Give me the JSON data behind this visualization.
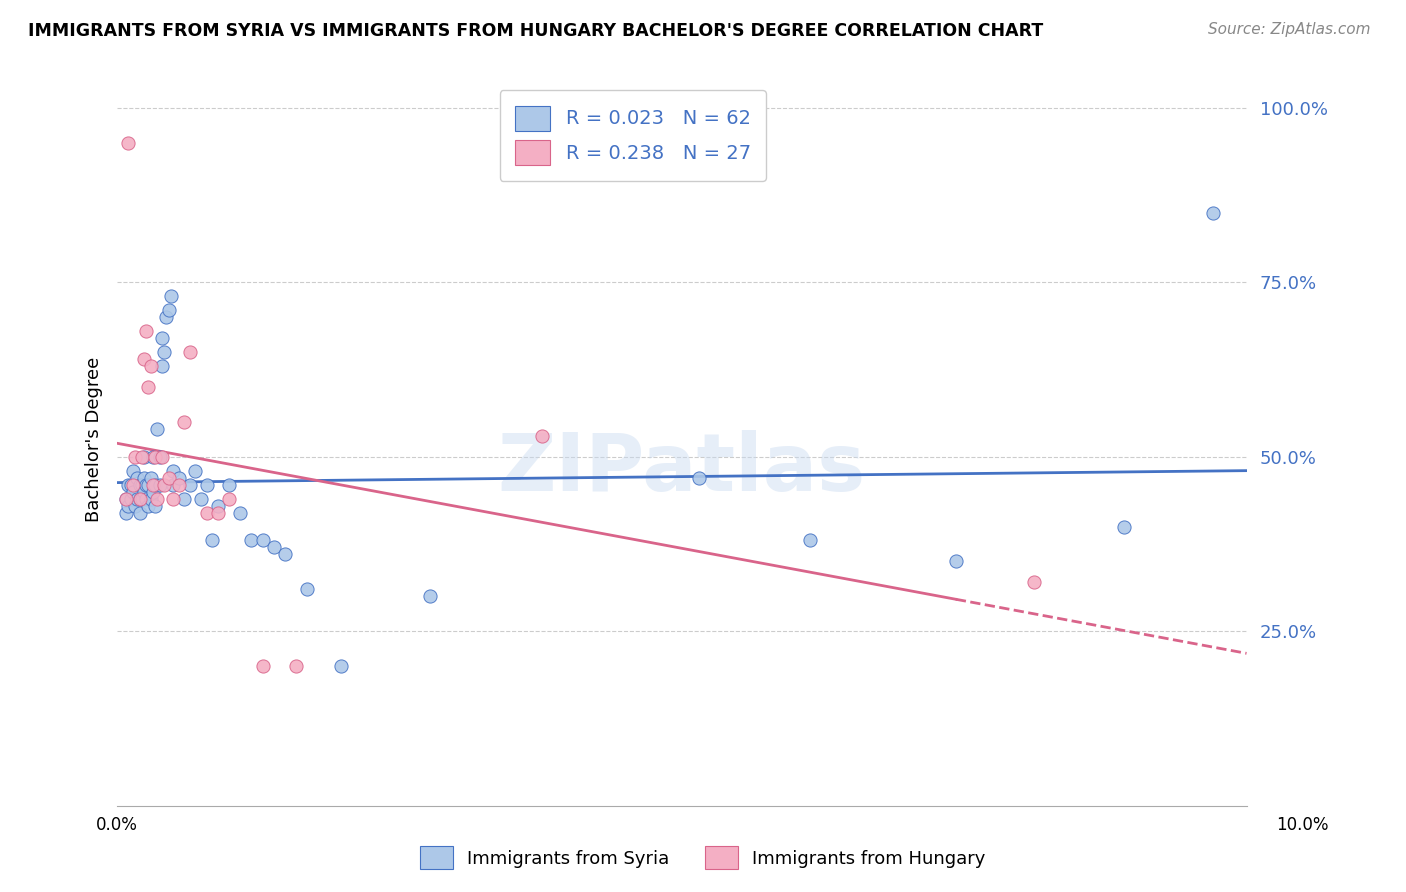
{
  "title": "IMMIGRANTS FROM SYRIA VS IMMIGRANTS FROM HUNGARY BACHELOR'S DEGREE CORRELATION CHART",
  "source": "Source: ZipAtlas.com",
  "ylabel": "Bachelor's Degree",
  "syria_R": 0.023,
  "syria_N": 62,
  "hungary_R": 0.238,
  "hungary_N": 27,
  "syria_color": "#adc8e8",
  "hungary_color": "#f4afc4",
  "syria_line_color": "#4472c4",
  "hungary_line_color": "#d9648a",
  "watermark": "ZIPatlas",
  "syria_points_x": [
    0.0008,
    0.0008,
    0.001,
    0.001,
    0.0012,
    0.0012,
    0.0014,
    0.0014,
    0.0016,
    0.0018,
    0.0018,
    0.002,
    0.002,
    0.002,
    0.0022,
    0.0022,
    0.0024,
    0.0024,
    0.0024,
    0.0026,
    0.0026,
    0.0028,
    0.0028,
    0.003,
    0.003,
    0.0032,
    0.0032,
    0.0034,
    0.0034,
    0.0036,
    0.0038,
    0.0038,
    0.004,
    0.004,
    0.0042,
    0.0044,
    0.0046,
    0.0048,
    0.005,
    0.005,
    0.0055,
    0.006,
    0.0065,
    0.007,
    0.0075,
    0.008,
    0.0085,
    0.009,
    0.01,
    0.011,
    0.012,
    0.013,
    0.014,
    0.015,
    0.017,
    0.02,
    0.028,
    0.052,
    0.062,
    0.075,
    0.09,
    0.098
  ],
  "syria_points_y": [
    0.44,
    0.42,
    0.46,
    0.43,
    0.44,
    0.46,
    0.45,
    0.48,
    0.43,
    0.44,
    0.47,
    0.42,
    0.44,
    0.46,
    0.44,
    0.46,
    0.45,
    0.47,
    0.5,
    0.44,
    0.46,
    0.43,
    0.46,
    0.44,
    0.47,
    0.45,
    0.5,
    0.43,
    0.46,
    0.54,
    0.46,
    0.5,
    0.63,
    0.67,
    0.65,
    0.7,
    0.71,
    0.73,
    0.46,
    0.48,
    0.47,
    0.44,
    0.46,
    0.48,
    0.44,
    0.46,
    0.38,
    0.43,
    0.46,
    0.42,
    0.38,
    0.38,
    0.37,
    0.36,
    0.31,
    0.2,
    0.3,
    0.47,
    0.38,
    0.35,
    0.4,
    0.85
  ],
  "hungary_points_x": [
    0.0008,
    0.001,
    0.0014,
    0.0016,
    0.002,
    0.0022,
    0.0024,
    0.0026,
    0.0028,
    0.003,
    0.0032,
    0.0034,
    0.0036,
    0.004,
    0.0042,
    0.0046,
    0.005,
    0.0055,
    0.006,
    0.0065,
    0.008,
    0.009,
    0.01,
    0.013,
    0.016,
    0.038,
    0.082
  ],
  "hungary_points_y": [
    0.44,
    0.95,
    0.46,
    0.5,
    0.44,
    0.5,
    0.64,
    0.68,
    0.6,
    0.63,
    0.46,
    0.5,
    0.44,
    0.5,
    0.46,
    0.47,
    0.44,
    0.46,
    0.55,
    0.65,
    0.42,
    0.42,
    0.44,
    0.2,
    0.2,
    0.53,
    0.32
  ],
  "xlim": [
    0.0,
    0.101
  ],
  "ylim": [
    0.0,
    1.05
  ],
  "yticks": [
    0.25,
    0.5,
    0.75,
    1.0
  ],
  "ytick_labels": [
    "25.0%",
    "50.0%",
    "75.0%",
    "100.0%"
  ]
}
